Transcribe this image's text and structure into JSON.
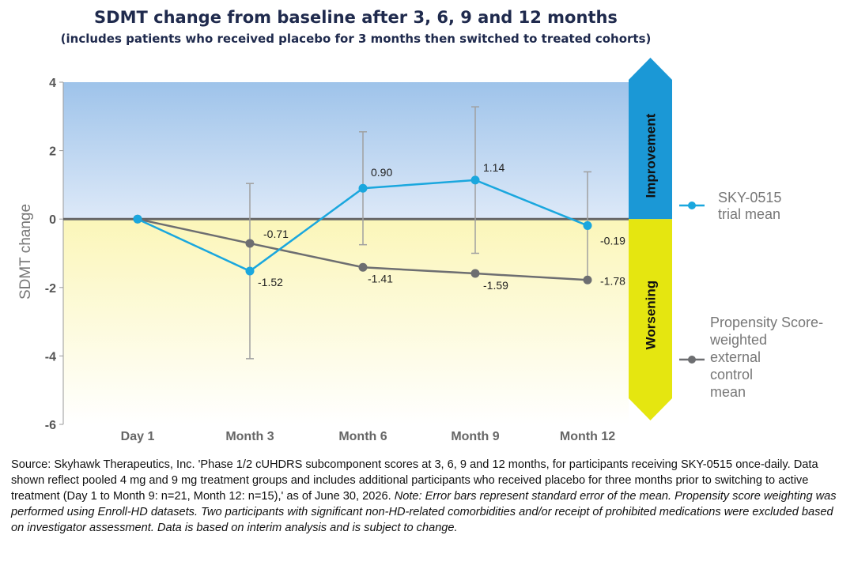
{
  "chart_data": {
    "type": "line",
    "title": "SDMT change from baseline after 3, 6, 9 and 12 months",
    "subtitle": "(includes patients who received placebo for 3 months then switched to treated cohorts)",
    "ylabel": "SDMT change",
    "xlabel": "",
    "categories": [
      "Day 1",
      "Month 3",
      "Month 6",
      "Month 9",
      "Month 12"
    ],
    "ylim": [
      -6,
      4
    ],
    "yticks": [
      4,
      2,
      0,
      -2,
      -4,
      -6
    ],
    "series": [
      {
        "name": "SKY-0515\ntrial mean",
        "color": "#1aa7de",
        "values": [
          0,
          -1.52,
          0.9,
          1.14,
          -0.19
        ],
        "labels": [
          "",
          "-1.52",
          "0.90",
          "1.14",
          "-0.19"
        ],
        "error_low": [
          null,
          -4.08,
          -0.75,
          -1.0,
          -1.78
        ],
        "error_high": [
          null,
          1.04,
          2.55,
          3.28,
          1.38
        ]
      },
      {
        "name": "Propensity Score-\nweighted\nexternal\ncontrol\nmean",
        "color": "#6d6e71",
        "values": [
          0,
          -0.71,
          -1.41,
          -1.59,
          -1.78
        ],
        "labels": [
          "",
          "-0.71",
          "-1.41",
          "-1.59",
          "-1.78"
        ]
      }
    ],
    "improvement_label": "Improvement",
    "worsening_label": "Worsening",
    "colors": {
      "improvement_arrow": "#1b98d6",
      "worsening_arrow": "#e5e610",
      "improvement_bg_top": "#9ec3ea",
      "improvement_bg_bottom": "#dde9f8",
      "worsening_bg_top": "#fbf6b9",
      "worsening_bg_bottom": "#ffffff",
      "zero_line": "#666666",
      "error_bar": "#a0a0a0"
    }
  },
  "source_note": {
    "main": "Source: Skyhawk Therapeutics, Inc. 'Phase 1/2 cUHDRS subcomponent scores at 3, 6, 9 and 12 months, for participants receiving SKY-0515 once-daily. Data shown reflect pooled 4 mg and 9 mg treatment groups and includes additional participants who received placebo for three months prior to switching to active treatment (Day 1 to Month 9: n=21, Month 12: n=15),' as of June 30, 2026. ",
    "note": "Note: Error bars represent standard error of the mean. Propensity score weighting was performed using Enroll-HD datasets. Two participants with significant non-HD-related comorbidities and/or receipt of prohibited medications were excluded based on investigator assessment. Data is based on interim analysis and is subject to change."
  }
}
